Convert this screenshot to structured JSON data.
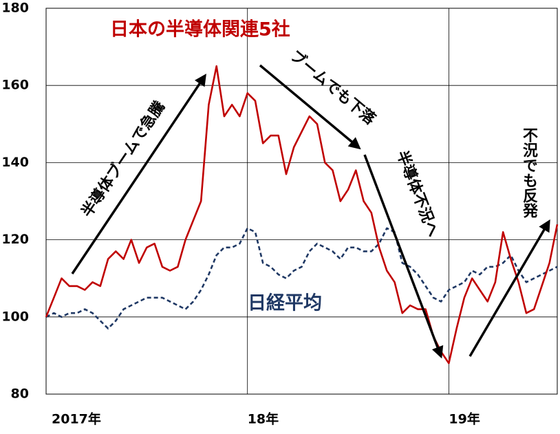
{
  "chart_data": {
    "type": "line",
    "categories": [
      "2017年",
      null,
      null,
      null,
      null,
      null,
      null,
      null,
      null,
      null,
      null,
      null,
      null,
      null,
      null,
      null,
      null,
      null,
      null,
      null,
      null,
      null,
      null,
      null,
      null,
      null,
      "18年",
      null,
      null,
      null,
      null,
      null,
      null,
      null,
      null,
      null,
      null,
      null,
      null,
      null,
      null,
      null,
      null,
      null,
      null,
      null,
      null,
      null,
      null,
      null,
      null,
      null,
      "19年",
      null,
      null,
      null,
      null,
      null,
      null,
      null,
      null,
      null,
      null,
      null,
      null,
      null,
      null
    ],
    "series": [
      {
        "name": "日本の半導体関連5社",
        "color": "#c00000",
        "dashed": false,
        "values": [
          100,
          105,
          110,
          108,
          108,
          107,
          109,
          108,
          115,
          117,
          115,
          120,
          114,
          118,
          119,
          113,
          112,
          113,
          120,
          125,
          130,
          155,
          165,
          152,
          155,
          152,
          158,
          156,
          145,
          147,
          147,
          137,
          144,
          148,
          152,
          150,
          140,
          138,
          130,
          133,
          138,
          130,
          127,
          118,
          112,
          109,
          101,
          103,
          102,
          102,
          95,
          91,
          88,
          97,
          105,
          110,
          107,
          104,
          109,
          122,
          115,
          109,
          101,
          102,
          108,
          114,
          124
        ]
      },
      {
        "name": "日経平均",
        "color": "#1f3864",
        "dashed": true,
        "values": [
          100,
          101,
          100,
          101,
          101,
          102,
          101,
          99,
          97,
          99,
          102,
          103,
          104,
          105,
          105,
          105,
          104,
          103,
          102,
          104,
          107,
          111,
          116,
          118,
          118,
          119,
          123,
          122,
          114,
          113,
          111,
          110,
          112,
          113,
          117,
          119,
          118,
          117,
          115,
          118,
          118,
          117,
          117,
          119,
          123,
          122,
          114,
          113,
          111,
          108,
          105,
          104,
          107,
          108,
          109,
          112,
          111,
          113,
          113,
          114,
          116,
          112,
          109,
          110,
          111,
          112,
          113
        ]
      }
    ],
    "annotations": [
      "半導体ブームで急騰",
      "ブームでも下落",
      "半導体不況へ",
      "不況でも反発"
    ],
    "ylim": [
      80,
      180
    ],
    "yticks": [
      80,
      100,
      120,
      140,
      160,
      180
    ],
    "grid": true
  }
}
